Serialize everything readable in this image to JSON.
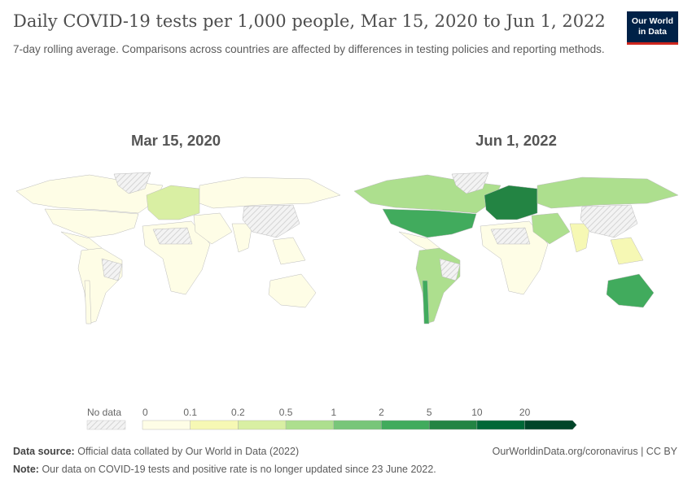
{
  "header": {
    "title": "Daily COVID-19 tests per 1,000 people, Mar 15, 2020 to Jun 1, 2022",
    "subtitle": "7-day rolling average. Comparisons across countries are affected by differences in testing policies and reporting methods.",
    "logo": "Our World in Data"
  },
  "maps": [
    {
      "label": "Mar 15, 2020"
    },
    {
      "label": "Jun 1, 2022"
    }
  ],
  "legend": {
    "no_data": "No data",
    "ticks": [
      "0",
      "0.1",
      "0.2",
      "0.5",
      "1",
      "2",
      "5",
      "10",
      "20"
    ],
    "colors": [
      "#fefde6",
      "#f6f8b4",
      "#d9efa3",
      "#addf8e",
      "#78c679",
      "#41ab5d",
      "#238443",
      "#006837",
      "#004529"
    ],
    "no_data_color": "#e9e9e9"
  },
  "regions": {
    "canada": [
      "0-0.1",
      "0.5-1"
    ],
    "usa": [
      "0-0.1",
      "2-5"
    ],
    "greenland": [
      "no data",
      "no data"
    ],
    "mexico": [
      "0-0.1",
      "0-0.1"
    ],
    "south-america": [
      "0-0.1",
      "0.5-1"
    ],
    "chile": [
      "0-0.1",
      "2-5"
    ],
    "brazil": [
      "no data",
      "no data"
    ],
    "europe": [
      "0.2-0.5",
      "5-10"
    ],
    "africa": [
      "0-0.1",
      "0-0.1"
    ],
    "sahara": [
      "no data",
      "no data"
    ],
    "russia": [
      "0-0.1",
      "0.5-1"
    ],
    "middle-east": [
      "0-0.1",
      "0.5-1"
    ],
    "india": [
      "0-0.1",
      "0.1-0.2"
    ],
    "china": [
      "no data",
      "no data"
    ],
    "southeast-asia": [
      "0-0.1",
      "0.1-0.2"
    ],
    "australia": [
      "0-0.1",
      "2-5"
    ]
  },
  "footer": {
    "source_label": "Data source:",
    "source": "Official data collated by Our World in Data (2022)",
    "note_label": "Note:",
    "note": "Our data on COVID-19 tests and positive rate is no longer updated since 23 June 2022.",
    "link": "OurWorldinData.org/coronavirus | CC BY"
  }
}
